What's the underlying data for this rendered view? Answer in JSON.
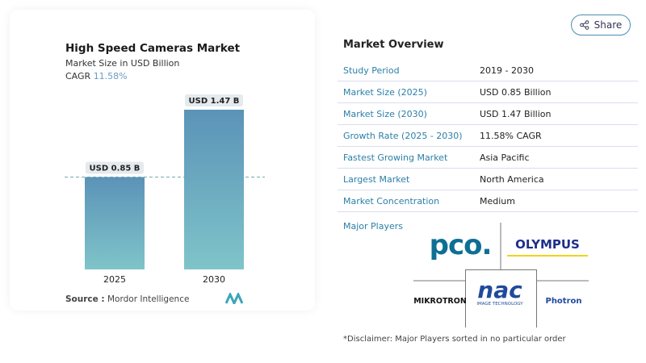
{
  "header": {
    "share_label": "Share",
    "share_icon": "share-icon"
  },
  "chart_data": {
    "type": "bar",
    "title": "High Speed Cameras Market",
    "subtitle": "Market Size in USD Billion",
    "cagr_label": "CAGR",
    "cagr_value": "11.58%",
    "categories": [
      "2025",
      "2030"
    ],
    "values": [
      0.85,
      1.47
    ],
    "data_labels": [
      "USD 0.85 B",
      "USD 1.47 B"
    ],
    "ylim": [
      0,
      1.47
    ],
    "grid": false,
    "bar_color_top": "#5b93b8",
    "bar_color_bottom": "#7fc4c9"
  },
  "source": {
    "label": "Source :",
    "value": "Mordor Intelligence"
  },
  "overview": {
    "title": "Market Overview",
    "rows": [
      {
        "key": "Study Period",
        "value": "2019 - 2030"
      },
      {
        "key": "Market Size (2025)",
        "value": "USD 0.85 Billion"
      },
      {
        "key": "Market Size (2030)",
        "value": "USD 1.47 Billion"
      },
      {
        "key": "Growth Rate (2025 - 2030)",
        "value": "11.58% CAGR"
      },
      {
        "key": "Fastest Growing Market",
        "value": "Asia Pacific"
      },
      {
        "key": "Largest Market",
        "value": "North America"
      },
      {
        "key": "Market Concentration",
        "value": "Medium"
      }
    ],
    "major_players_label": "Major Players",
    "players": [
      "pco.",
      "OLYMPUS",
      "MIKROTRON",
      "nac",
      "Photron"
    ],
    "nac_tagline": "IMAGE TECHNOLOGY",
    "disclaimer": "*Disclaimer: Major Players sorted in no particular order"
  }
}
